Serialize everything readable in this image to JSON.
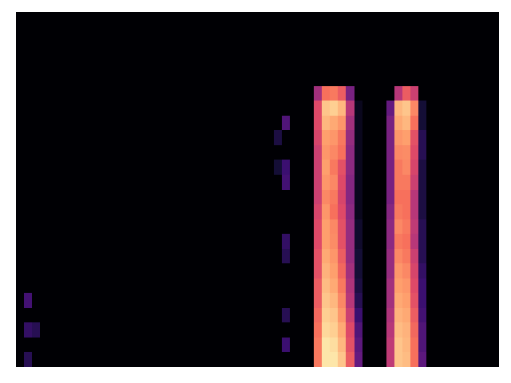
{
  "chart_data": {
    "type": "heatmap",
    "color": "magma",
    "tick_labels": false,
    "zlim": [
      0,
      1
    ],
    "cells": [
      [
        0,
        0,
        0,
        0,
        0,
        0,
        0,
        0,
        0,
        0,
        0,
        0,
        0,
        0,
        0,
        0,
        0,
        0,
        0,
        0,
        0,
        0,
        0,
        0,
        0,
        0,
        0,
        0,
        0,
        0,
        0,
        0,
        0,
        0,
        0,
        0,
        0,
        0,
        0,
        0,
        0,
        0,
        0,
        0,
        0,
        0,
        0,
        0,
        0,
        0,
        0,
        0,
        0,
        0,
        0,
        0,
        0,
        0,
        0,
        0
      ],
      [
        0,
        0,
        0,
        0,
        0,
        0,
        0,
        0,
        0,
        0,
        0,
        0,
        0,
        0,
        0,
        0,
        0,
        0,
        0,
        0,
        0,
        0,
        0,
        0,
        0,
        0,
        0,
        0,
        0,
        0,
        0,
        0,
        0,
        0,
        0,
        0,
        0,
        0,
        0,
        0,
        0,
        0,
        0,
        0,
        0,
        0,
        0,
        0,
        0,
        0,
        0,
        0,
        0,
        0,
        0,
        0,
        0,
        0,
        0,
        0
      ],
      [
        0,
        0,
        0,
        0,
        0,
        0,
        0,
        0,
        0,
        0,
        0,
        0,
        0,
        0,
        0,
        0,
        0,
        0,
        0,
        0,
        0,
        0,
        0,
        0,
        0,
        0,
        0,
        0,
        0,
        0,
        0,
        0,
        0,
        0,
        0,
        0,
        0,
        0,
        0,
        0,
        0,
        0,
        0,
        0,
        0,
        0,
        0,
        0,
        0,
        0,
        0,
        0,
        0,
        0,
        0,
        0,
        0,
        0,
        0,
        0
      ],
      [
        0,
        0,
        0,
        0,
        0,
        0,
        0,
        0,
        0,
        0,
        0,
        0,
        0,
        0,
        0,
        0,
        0,
        0,
        0,
        0,
        0,
        0,
        0,
        0,
        0,
        0,
        0,
        0,
        0,
        0,
        0,
        0,
        0,
        0,
        0,
        0,
        0,
        0,
        0,
        0,
        0,
        0,
        0,
        0,
        0,
        0,
        0,
        0,
        0,
        0,
        0,
        0,
        0,
        0,
        0,
        0,
        0,
        0,
        0,
        0
      ],
      [
        0,
        0,
        0,
        0,
        0,
        0,
        0,
        0,
        0,
        0,
        0,
        0,
        0,
        0,
        0,
        0,
        0,
        0,
        0,
        0,
        0,
        0,
        0,
        0,
        0,
        0,
        0,
        0,
        0,
        0,
        0,
        0,
        0,
        0,
        0,
        0,
        0,
        0,
        0,
        0,
        0,
        0,
        0,
        0,
        0,
        0,
        0,
        0,
        0,
        0,
        0,
        0,
        0,
        0,
        0,
        0,
        0,
        0,
        0,
        0
      ],
      [
        0,
        0,
        0,
        0,
        0,
        0,
        0,
        0,
        0,
        0,
        0,
        0,
        0,
        0,
        0,
        0,
        0,
        0,
        0,
        0,
        0,
        0,
        0,
        0,
        0,
        0,
        0,
        0,
        0,
        0,
        0,
        0,
        0,
        0,
        0,
        0,
        0,
        0.45,
        0.7,
        0.72,
        0.65,
        0.35,
        0,
        0,
        0,
        0,
        0,
        0.5,
        0.65,
        0.55,
        0,
        0,
        0,
        0,
        0,
        0,
        0,
        0,
        0,
        0
      ],
      [
        0,
        0,
        0,
        0,
        0,
        0,
        0,
        0,
        0,
        0,
        0,
        0,
        0,
        0,
        0,
        0,
        0,
        0,
        0,
        0,
        0,
        0,
        0,
        0,
        0,
        0,
        0,
        0,
        0,
        0,
        0,
        0,
        0,
        0,
        0,
        0,
        0,
        0.6,
        0.88,
        0.9,
        0.85,
        0.5,
        0.05,
        0,
        0,
        0,
        0.3,
        0.85,
        0.88,
        0.75,
        0.1,
        0,
        0,
        0,
        0,
        0,
        0,
        0,
        0,
        0
      ],
      [
        0,
        0,
        0,
        0,
        0,
        0,
        0,
        0,
        0,
        0,
        0,
        0,
        0,
        0,
        0,
        0,
        0,
        0,
        0,
        0,
        0,
        0,
        0,
        0,
        0,
        0,
        0,
        0,
        0,
        0,
        0,
        0,
        0,
        0.25,
        0,
        0,
        0,
        0.6,
        0.85,
        0.82,
        0.78,
        0.45,
        0.05,
        0,
        0,
        0,
        0.35,
        0.82,
        0.85,
        0.7,
        0.1,
        0,
        0,
        0,
        0,
        0,
        0,
        0,
        0,
        0
      ],
      [
        0,
        0,
        0,
        0,
        0,
        0,
        0,
        0,
        0,
        0,
        0,
        0,
        0,
        0,
        0,
        0,
        0,
        0,
        0,
        0,
        0,
        0,
        0,
        0,
        0,
        0,
        0,
        0,
        0,
        0,
        0,
        0,
        0.12,
        0,
        0,
        0,
        0,
        0.58,
        0.8,
        0.78,
        0.72,
        0.42,
        0.05,
        0,
        0,
        0,
        0.35,
        0.78,
        0.8,
        0.62,
        0.15,
        0,
        0,
        0,
        0,
        0,
        0,
        0,
        0,
        0
      ],
      [
        0,
        0,
        0,
        0,
        0,
        0,
        0,
        0,
        0,
        0,
        0,
        0,
        0,
        0,
        0,
        0,
        0,
        0,
        0,
        0,
        0,
        0,
        0,
        0,
        0,
        0,
        0,
        0,
        0,
        0,
        0,
        0,
        0,
        0,
        0,
        0,
        0,
        0.55,
        0.78,
        0.75,
        0.7,
        0.4,
        0.05,
        0,
        0,
        0,
        0.35,
        0.75,
        0.76,
        0.6,
        0.15,
        0,
        0,
        0,
        0,
        0,
        0,
        0,
        0,
        0
      ],
      [
        0,
        0,
        0,
        0,
        0,
        0,
        0,
        0,
        0,
        0,
        0,
        0,
        0,
        0,
        0,
        0,
        0,
        0,
        0,
        0,
        0,
        0,
        0,
        0,
        0,
        0,
        0,
        0,
        0,
        0,
        0,
        0,
        0.1,
        0.2,
        0,
        0,
        0,
        0.55,
        0.8,
        0.72,
        0.62,
        0.4,
        0.05,
        0,
        0,
        0,
        0.35,
        0.72,
        0.75,
        0.58,
        0.12,
        0,
        0,
        0,
        0,
        0,
        0,
        0,
        0,
        0
      ],
      [
        0,
        0,
        0,
        0,
        0,
        0,
        0,
        0,
        0,
        0,
        0,
        0,
        0,
        0,
        0,
        0,
        0,
        0,
        0,
        0,
        0,
        0,
        0,
        0,
        0,
        0,
        0,
        0,
        0,
        0,
        0,
        0,
        0,
        0.22,
        0,
        0,
        0,
        0.55,
        0.78,
        0.75,
        0.6,
        0.38,
        0.05,
        0,
        0,
        0,
        0.35,
        0.72,
        0.72,
        0.55,
        0.12,
        0,
        0,
        0,
        0,
        0,
        0,
        0,
        0,
        0
      ],
      [
        0,
        0,
        0,
        0,
        0,
        0,
        0,
        0,
        0,
        0,
        0,
        0,
        0,
        0,
        0,
        0,
        0,
        0,
        0,
        0,
        0,
        0,
        0,
        0,
        0,
        0,
        0,
        0,
        0,
        0,
        0,
        0,
        0,
        0,
        0,
        0,
        0,
        0.55,
        0.75,
        0.72,
        0.58,
        0.38,
        0.05,
        0,
        0,
        0,
        0.35,
        0.7,
        0.7,
        0.5,
        0.12,
        0,
        0,
        0,
        0,
        0,
        0,
        0,
        0,
        0
      ],
      [
        0,
        0,
        0,
        0,
        0,
        0,
        0,
        0,
        0,
        0,
        0,
        0,
        0,
        0,
        0,
        0,
        0,
        0,
        0,
        0,
        0,
        0,
        0,
        0,
        0,
        0,
        0,
        0,
        0,
        0,
        0,
        0,
        0,
        0,
        0,
        0,
        0,
        0.58,
        0.78,
        0.7,
        0.6,
        0.4,
        0.05,
        0,
        0,
        0,
        0.38,
        0.72,
        0.7,
        0.5,
        0.12,
        0,
        0,
        0,
        0,
        0,
        0,
        0,
        0,
        0
      ],
      [
        0,
        0,
        0,
        0,
        0,
        0,
        0,
        0,
        0,
        0,
        0,
        0,
        0,
        0,
        0,
        0,
        0,
        0,
        0,
        0,
        0,
        0,
        0,
        0,
        0,
        0,
        0,
        0,
        0,
        0,
        0,
        0,
        0,
        0,
        0,
        0,
        0,
        0.6,
        0.8,
        0.75,
        0.62,
        0.42,
        0.08,
        0,
        0,
        0,
        0.4,
        0.75,
        0.72,
        0.52,
        0.15,
        0,
        0,
        0,
        0,
        0,
        0,
        0,
        0,
        0
      ],
      [
        0,
        0,
        0,
        0,
        0,
        0,
        0,
        0,
        0,
        0,
        0,
        0,
        0,
        0,
        0,
        0,
        0,
        0,
        0,
        0,
        0,
        0,
        0,
        0,
        0,
        0,
        0,
        0,
        0,
        0,
        0,
        0,
        0,
        0.18,
        0,
        0,
        0,
        0.6,
        0.8,
        0.76,
        0.62,
        0.42,
        0.08,
        0,
        0,
        0,
        0.4,
        0.72,
        0.7,
        0.5,
        0.15,
        0,
        0,
        0,
        0,
        0,
        0,
        0,
        0,
        0
      ],
      [
        0,
        0,
        0,
        0,
        0,
        0,
        0,
        0,
        0,
        0,
        0,
        0,
        0,
        0,
        0,
        0,
        0,
        0,
        0,
        0,
        0,
        0,
        0,
        0,
        0,
        0,
        0,
        0,
        0,
        0,
        0,
        0,
        0,
        0.15,
        0,
        0,
        0,
        0.62,
        0.82,
        0.78,
        0.65,
        0.42,
        0.1,
        0,
        0,
        0,
        0.42,
        0.75,
        0.72,
        0.55,
        0.15,
        0,
        0,
        0,
        0,
        0,
        0,
        0,
        0,
        0
      ],
      [
        0,
        0,
        0,
        0,
        0,
        0,
        0,
        0,
        0,
        0,
        0,
        0,
        0,
        0,
        0,
        0,
        0,
        0,
        0,
        0,
        0,
        0,
        0,
        0,
        0,
        0,
        0,
        0,
        0,
        0,
        0,
        0,
        0,
        0,
        0,
        0,
        0,
        0.62,
        0.84,
        0.8,
        0.68,
        0.45,
        0.1,
        0,
        0,
        0,
        0.42,
        0.78,
        0.75,
        0.58,
        0.18,
        0,
        0,
        0,
        0,
        0,
        0,
        0,
        0,
        0
      ],
      [
        0,
        0,
        0,
        0,
        0,
        0,
        0,
        0,
        0,
        0,
        0,
        0,
        0,
        0,
        0,
        0,
        0,
        0,
        0,
        0,
        0,
        0,
        0,
        0,
        0,
        0,
        0,
        0,
        0,
        0,
        0,
        0,
        0,
        0,
        0,
        0,
        0,
        0.65,
        0.86,
        0.82,
        0.72,
        0.48,
        0.12,
        0,
        0,
        0,
        0.45,
        0.8,
        0.78,
        0.6,
        0.2,
        0,
        0,
        0,
        0,
        0,
        0,
        0,
        0,
        0
      ],
      [
        0,
        0.22,
        0,
        0,
        0,
        0,
        0,
        0,
        0,
        0,
        0,
        0,
        0,
        0,
        0,
        0,
        0,
        0,
        0,
        0,
        0,
        0,
        0,
        0,
        0,
        0,
        0,
        0,
        0,
        0,
        0,
        0,
        0,
        0,
        0,
        0,
        0,
        0.65,
        0.88,
        0.85,
        0.75,
        0.5,
        0.15,
        0,
        0,
        0,
        0.45,
        0.82,
        0.8,
        0.62,
        0.2,
        0,
        0,
        0,
        0,
        0,
        0,
        0,
        0,
        0
      ],
      [
        0,
        0,
        0,
        0,
        0,
        0,
        0,
        0,
        0,
        0,
        0,
        0,
        0,
        0,
        0,
        0,
        0,
        0,
        0,
        0,
        0,
        0,
        0,
        0,
        0,
        0,
        0,
        0,
        0,
        0,
        0,
        0,
        0,
        0.15,
        0,
        0,
        0,
        0.68,
        0.9,
        0.88,
        0.78,
        0.55,
        0.2,
        0,
        0,
        0,
        0.48,
        0.84,
        0.82,
        0.65,
        0.22,
        0,
        0,
        0,
        0,
        0,
        0,
        0,
        0,
        0
      ],
      [
        0,
        0.18,
        0.15,
        0,
        0,
        0,
        0,
        0,
        0,
        0,
        0,
        0,
        0,
        0,
        0,
        0,
        0,
        0,
        0,
        0,
        0,
        0,
        0,
        0,
        0,
        0,
        0,
        0,
        0,
        0,
        0,
        0,
        0,
        0,
        0,
        0,
        0,
        0.7,
        0.92,
        0.9,
        0.82,
        0.6,
        0.25,
        0,
        0,
        0,
        0.5,
        0.86,
        0.84,
        0.68,
        0.25,
        0,
        0,
        0,
        0,
        0,
        0,
        0,
        0,
        0
      ],
      [
        0,
        0,
        0,
        0,
        0,
        0,
        0,
        0,
        0,
        0,
        0,
        0,
        0,
        0,
        0,
        0,
        0,
        0,
        0,
        0,
        0,
        0,
        0,
        0,
        0,
        0,
        0,
        0,
        0,
        0,
        0,
        0,
        0,
        0.2,
        0,
        0,
        0,
        0.72,
        0.95,
        0.93,
        0.85,
        0.62,
        0.28,
        0,
        0,
        0,
        0.52,
        0.88,
        0.85,
        0.7,
        0.25,
        0,
        0,
        0,
        0,
        0,
        0,
        0,
        0,
        0
      ],
      [
        0,
        0.15,
        0,
        0,
        0,
        0,
        0,
        0,
        0,
        0,
        0,
        0,
        0,
        0,
        0,
        0,
        0,
        0,
        0,
        0,
        0,
        0,
        0,
        0,
        0,
        0,
        0,
        0,
        0,
        0,
        0,
        0,
        0,
        0,
        0,
        0,
        0,
        0.72,
        0.95,
        0.95,
        0.88,
        0.65,
        0.3,
        0,
        0,
        0,
        0.52,
        0.88,
        0.86,
        0.7,
        0.28,
        0,
        0,
        0,
        0,
        0,
        0,
        0,
        0,
        0
      ]
    ]
  }
}
